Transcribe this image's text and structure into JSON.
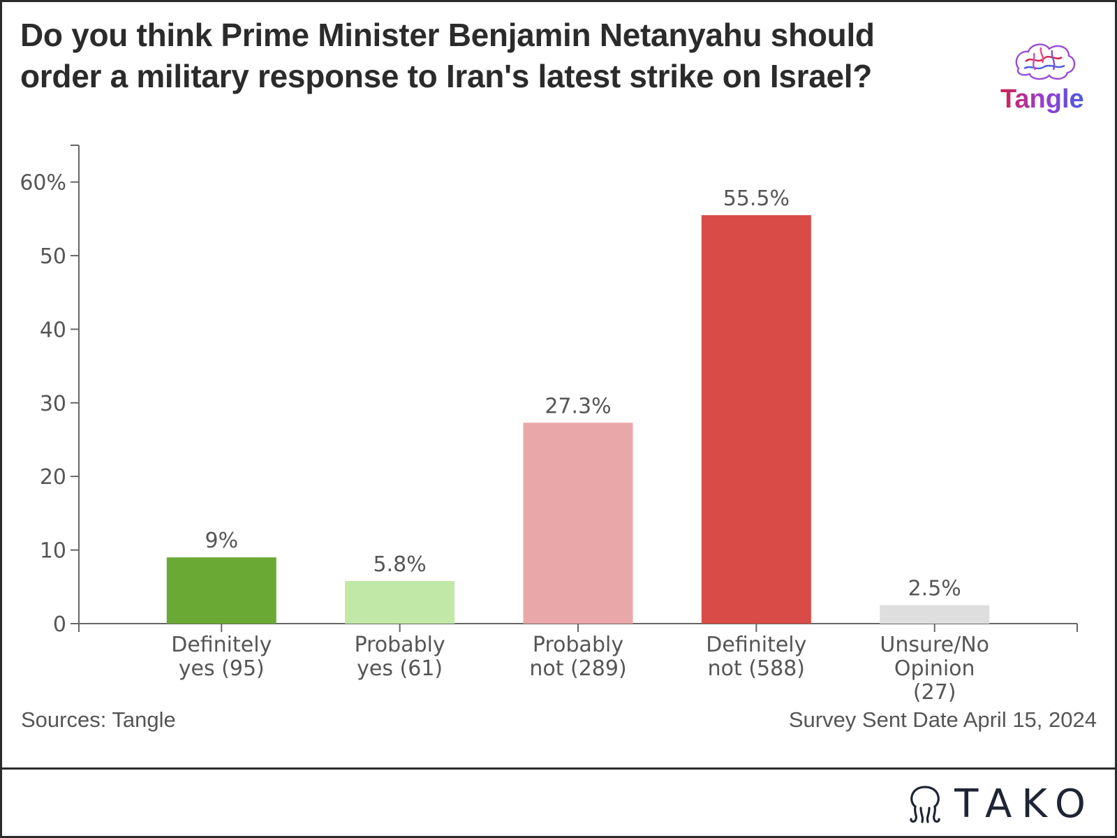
{
  "title": "Do you think Prime Minister Benjamin Netanyahu should order a military response to Iran's latest strike on Israel?",
  "logo_text": "Tangle",
  "footer": {
    "source": "Sources: Tangle",
    "date": "Survey Sent Date April 15, 2024"
  },
  "brand": {
    "name": "TAKO",
    "icon": "tako-octopus-icon"
  },
  "colors": {
    "definitely_yes": "#6aa934",
    "probably_yes": "#c2e8a8",
    "probably_not": "#eaa7a9",
    "definitely_not": "#d94b46",
    "unsure": "#dedede"
  },
  "chart_data": {
    "type": "bar",
    "categories": [
      [
        "Definitely",
        "yes (95)"
      ],
      [
        "Probably",
        "yes (61)"
      ],
      [
        "Probably",
        "not (289)"
      ],
      [
        "Definitely",
        "not (588)"
      ],
      [
        "Unsure/No",
        "Opinion",
        "(27)"
      ]
    ],
    "values": [
      9,
      5.8,
      27.3,
      55.5,
      2.5
    ],
    "data_labels": [
      "9%",
      "5.8%",
      "27.3%",
      "55.5%",
      "2.5%"
    ],
    "bar_colors": [
      "#6aa934",
      "#c2e8a8",
      "#eaa7a9",
      "#d94b46",
      "#dedede"
    ],
    "ylim": [
      0,
      65
    ],
    "yticks": [
      0,
      10,
      20,
      30,
      40,
      50,
      60
    ],
    "ytick_labels": [
      "0",
      "10",
      "20",
      "30",
      "40",
      "50",
      "60%"
    ],
    "grid": false,
    "legend": "none"
  }
}
